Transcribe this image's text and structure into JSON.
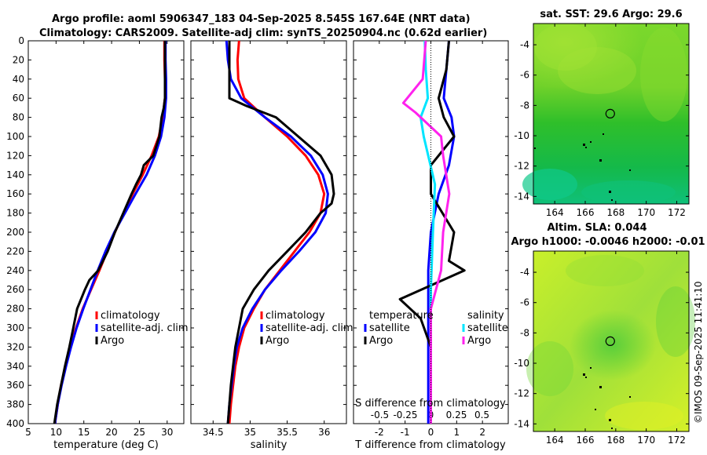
{
  "header": {
    "line1": "Argo profile: aoml 5906347_183 04-Sep-2025 8.545S 167.64E (NRT data)",
    "line2": "Climatology: CARS2009. Satellite-adj clim: synTS_20250904.nc (0.62d earlier)"
  },
  "footer": {
    "credit": "©IMOS 09-Sep-2025 11:41:10"
  },
  "colors": {
    "climatology": "#ff0000",
    "satellite": "#0000ff",
    "argo": "#000000",
    "salinity_satellite": "#00e5ff",
    "salinity_argo": "#ff22ee"
  },
  "chart_data": [
    {
      "id": "temperature",
      "type": "line",
      "xlabel": "temperature (deg C)",
      "ylabel": "",
      "xlim": [
        5,
        33
      ],
      "ylim": [
        400,
        0
      ],
      "xticks": [
        "5",
        "10",
        "15",
        "20",
        "25",
        "30"
      ],
      "yticks": [
        "0",
        "20",
        "40",
        "60",
        "80",
        "100",
        "120",
        "140",
        "160",
        "180",
        "200",
        "220",
        "240",
        "260",
        "280",
        "300",
        "320",
        "340",
        "360",
        "380",
        "400"
      ],
      "legend": [
        "climatology",
        "satellite-adj. clim",
        "Argo"
      ],
      "series": [
        {
          "name": "climatology",
          "depth": [
            0,
            20,
            40,
            60,
            80,
            100,
            120,
            140,
            160,
            180,
            200,
            220,
            240,
            260,
            280,
            300,
            320,
            340,
            360,
            380,
            400
          ],
          "values": [
            29.5,
            29.5,
            29.6,
            29.6,
            29.2,
            28.5,
            27.2,
            25.6,
            23.8,
            22.2,
            20.6,
            19.2,
            17.8,
            16.3,
            14.8,
            13.6,
            12.6,
            11.7,
            10.9,
            10.3,
            9.8
          ]
        },
        {
          "name": "satellite-adj. clim",
          "depth": [
            0,
            20,
            40,
            60,
            80,
            100,
            120,
            140,
            160,
            180,
            200,
            220,
            240,
            260,
            280,
            300,
            320,
            340,
            360,
            380,
            400
          ],
          "values": [
            29.7,
            29.7,
            29.8,
            29.8,
            29.5,
            28.9,
            27.8,
            26.3,
            24.3,
            22.4,
            20.5,
            18.9,
            17.5,
            16.2,
            14.9,
            13.7,
            12.7,
            11.8,
            11.0,
            10.3,
            9.8
          ]
        },
        {
          "name": "Argo",
          "depth": [
            0,
            20,
            40,
            60,
            70,
            80,
            100,
            120,
            130,
            140,
            150,
            160,
            180,
            200,
            220,
            240,
            250,
            260,
            280,
            300,
            320,
            340,
            360,
            380,
            400
          ],
          "values": [
            29.6,
            29.6,
            29.6,
            29.6,
            29.4,
            29.0,
            28.6,
            27.5,
            25.8,
            25.3,
            24.4,
            23.6,
            22.1,
            20.6,
            19.3,
            17.6,
            16.0,
            15.2,
            13.8,
            13.1,
            12.4,
            11.6,
            10.9,
            10.2,
            9.7
          ]
        }
      ]
    },
    {
      "id": "salinity",
      "type": "line",
      "xlabel": "salinity",
      "xlim": [
        34.2,
        36.3
      ],
      "ylim": [
        400,
        0
      ],
      "xticks": [
        "34.5",
        "35",
        "35.5",
        "36"
      ],
      "legend": [
        "climatology",
        "satellite-adj. clim",
        "Argo"
      ],
      "series": [
        {
          "name": "climatology",
          "depth": [
            0,
            20,
            40,
            60,
            80,
            100,
            120,
            140,
            160,
            180,
            200,
            220,
            240,
            260,
            280,
            300,
            320,
            340,
            360,
            380,
            400
          ],
          "values": [
            34.85,
            34.83,
            34.84,
            34.92,
            35.2,
            35.5,
            35.75,
            35.92,
            36.0,
            35.95,
            35.8,
            35.6,
            35.4,
            35.2,
            35.05,
            34.92,
            34.85,
            34.8,
            34.77,
            34.74,
            34.72
          ]
        },
        {
          "name": "satellite-adj. clim",
          "depth": [
            0,
            20,
            40,
            60,
            80,
            100,
            120,
            140,
            160,
            180,
            200,
            220,
            240,
            260,
            280,
            300,
            320,
            340,
            360,
            380,
            400
          ],
          "values": [
            34.68,
            34.7,
            34.74,
            34.88,
            35.2,
            35.55,
            35.82,
            35.98,
            36.05,
            36.02,
            35.88,
            35.66,
            35.42,
            35.2,
            35.03,
            34.9,
            34.82,
            34.78,
            34.75,
            34.72,
            34.7
          ]
        },
        {
          "name": "Argo",
          "depth": [
            0,
            20,
            40,
            60,
            68,
            80,
            100,
            120,
            140,
            160,
            170,
            180,
            200,
            220,
            240,
            260,
            280,
            300,
            320,
            340,
            360,
            380,
            400
          ],
          "values": [
            34.72,
            34.72,
            34.72,
            34.72,
            34.95,
            35.35,
            35.65,
            35.95,
            36.1,
            36.13,
            36.1,
            35.95,
            35.75,
            35.5,
            35.25,
            35.05,
            34.9,
            34.85,
            34.8,
            34.77,
            34.74,
            34.72,
            34.7
          ]
        }
      ]
    },
    {
      "id": "difference",
      "type": "line",
      "xlabel": "T difference from climatology",
      "xlabel2": "S difference from climatology",
      "xlim": [
        -3,
        3
      ],
      "ylim": [
        400,
        0
      ],
      "xticks": [
        "-2",
        "-1",
        "0",
        "1",
        "2"
      ],
      "xticks_top": [
        "-0.5",
        "-0.25",
        "0",
        "0.25",
        "0.5"
      ],
      "legend_temperature": {
        "header": "temperature",
        "items": [
          "satellite",
          "Argo"
        ]
      },
      "legend_salinity": {
        "header": "salinity",
        "items": [
          "satellite",
          "Argo"
        ]
      },
      "series": [
        {
          "name": "temperature satellite",
          "depth": [
            0,
            30,
            60,
            80,
            100,
            130,
            160,
            200,
            240,
            280,
            320,
            360,
            400
          ],
          "values": [
            0.7,
            0.6,
            0.5,
            0.8,
            0.9,
            0.7,
            0.3,
            0.0,
            -0.1,
            -0.1,
            -0.1,
            -0.1,
            -0.1
          ]
        },
        {
          "name": "temperature Argo",
          "depth": [
            0,
            30,
            60,
            80,
            100,
            130,
            160,
            200,
            230,
            240,
            270,
            290,
            320,
            360,
            400
          ],
          "values": [
            0.7,
            0.6,
            0.3,
            0.5,
            0.9,
            0.0,
            0.0,
            0.9,
            0.7,
            1.3,
            -1.2,
            -0.4,
            0.0,
            0.0,
            0.0
          ]
        },
        {
          "name": "salinity satellite",
          "depth": [
            0,
            30,
            60,
            80,
            100,
            150,
            200,
            260,
            300,
            360,
            400
          ],
          "values": [
            -0.06,
            -0.05,
            -0.03,
            -0.1,
            -0.07,
            0.04,
            0.02,
            0.0,
            0.0,
            0.0,
            0.0
          ]
        },
        {
          "name": "salinity Argo",
          "depth": [
            0,
            40,
            65,
            75,
            100,
            120,
            160,
            200,
            240,
            280,
            320,
            360,
            400
          ],
          "values": [
            -0.05,
            -0.08,
            -0.27,
            -0.15,
            0.1,
            0.12,
            0.18,
            0.12,
            0.1,
            0.0,
            0.0,
            0.0,
            0.0
          ]
        }
      ]
    },
    {
      "id": "sst_map",
      "type": "heatmap",
      "title": "sat. SST: 29.6 Argo: 29.6",
      "xticks": [
        "164",
        "166",
        "168",
        "170",
        "172"
      ],
      "yticks": [
        "-4",
        "-6",
        "-8",
        "-10",
        "-12",
        "-14"
      ],
      "xlim": [
        162.6,
        172.8
      ],
      "ylim": [
        -14.5,
        -2.6
      ],
      "argo_position": {
        "lon": 167.64,
        "lat": -8.545
      }
    },
    {
      "id": "sla_map",
      "type": "heatmap",
      "title": "Altim. SLA: 0.044",
      "subtitle": "Argo h1000: -0.0046 h2000: -0.01",
      "xticks": [
        "164",
        "166",
        "168",
        "170",
        "172"
      ],
      "yticks": [
        "-4",
        "-6",
        "-8",
        "-10",
        "-12",
        "-14"
      ],
      "xlim": [
        162.6,
        172.8
      ],
      "ylim": [
        -14.5,
        -2.6
      ],
      "argo_position": {
        "lon": 167.64,
        "lat": -8.545
      }
    }
  ]
}
